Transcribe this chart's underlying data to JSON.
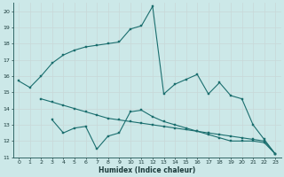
{
  "bg_color": "#cce8e8",
  "grid_color": "#b0d0d0",
  "line_color": "#1a6e6e",
  "xlabel": "Humidex (Indice chaleur)",
  "ylim": [
    11,
    20.5
  ],
  "xlim": [
    -0.5,
    23.5
  ],
  "yticks": [
    11,
    12,
    13,
    14,
    15,
    16,
    17,
    18,
    19,
    20
  ],
  "xticks": [
    0,
    1,
    2,
    3,
    4,
    5,
    6,
    7,
    8,
    9,
    10,
    11,
    12,
    13,
    14,
    15,
    16,
    17,
    18,
    19,
    20,
    21,
    22,
    23
  ],
  "line1_x": [
    0,
    1,
    2,
    3,
    4,
    5,
    6,
    7,
    8,
    9,
    10,
    11,
    12,
    13,
    14,
    15,
    16,
    17,
    18,
    19,
    20,
    21,
    22,
    23
  ],
  "line1_y": [
    15.7,
    15.3,
    16.0,
    16.8,
    17.3,
    17.6,
    17.8,
    17.9,
    18.0,
    18.1,
    18.9,
    19.1,
    20.3,
    14.9,
    15.5,
    15.8,
    16.1,
    14.9,
    15.6,
    14.8,
    14.6,
    13.0,
    12.1,
    11.2
  ],
  "line2_x": [
    2,
    3,
    4,
    5,
    6,
    7,
    8,
    9,
    10,
    11,
    12,
    13,
    14,
    15,
    16,
    17,
    18,
    19,
    20,
    21,
    22,
    23
  ],
  "line2_y": [
    14.6,
    14.4,
    14.2,
    14.0,
    13.8,
    13.6,
    13.4,
    13.3,
    13.2,
    13.1,
    13.0,
    12.9,
    12.8,
    12.7,
    12.6,
    12.5,
    12.4,
    12.3,
    12.2,
    12.1,
    12.0,
    11.2
  ],
  "line3_x": [
    3,
    4,
    5,
    6,
    7,
    8,
    9,
    10,
    11,
    12,
    13,
    14,
    15,
    16,
    17,
    18,
    19,
    20,
    21,
    22,
    23
  ],
  "line3_y": [
    13.3,
    12.5,
    12.8,
    12.9,
    11.5,
    12.3,
    12.5,
    13.8,
    13.9,
    13.5,
    13.2,
    13.0,
    12.8,
    12.6,
    12.4,
    12.2,
    12.0,
    12.0,
    12.0,
    11.9,
    11.2
  ]
}
